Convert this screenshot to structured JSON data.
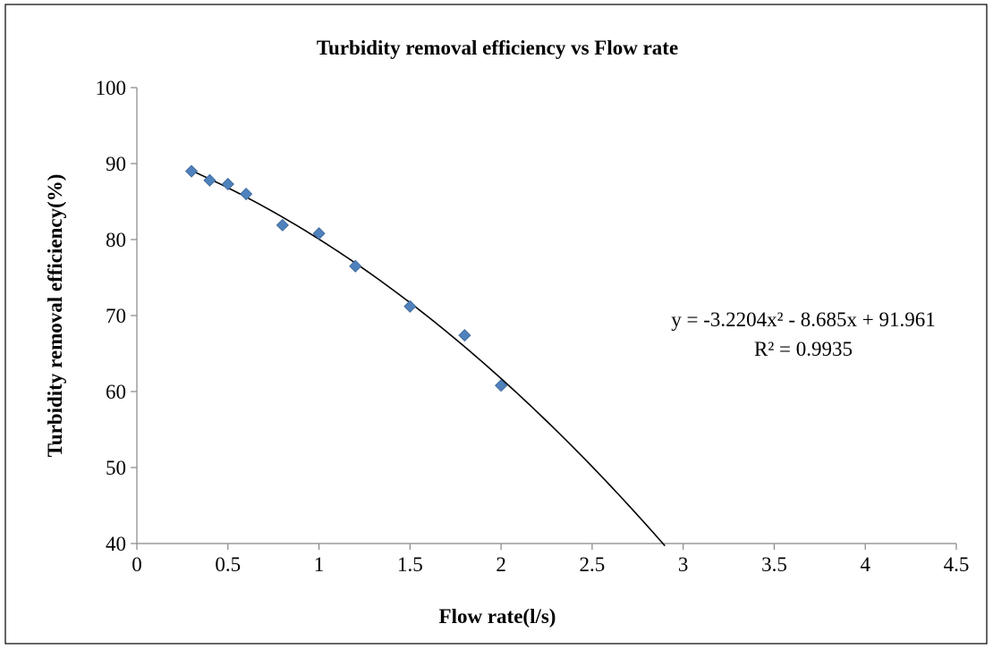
{
  "chart_data": {
    "type": "scatter",
    "title": "Turbidity removal efficiency vs Flow rate",
    "xlabel": "Flow rate(l/s)",
    "ylabel": "Turbidity removal efficiency(%)",
    "xlim": [
      0,
      4.5
    ],
    "ylim": [
      40,
      100
    ],
    "x_ticks": [
      "0",
      "0.5",
      "1",
      "1.5",
      "2",
      "2.5",
      "3",
      "3.5",
      "4",
      "4.5"
    ],
    "y_ticks": [
      "40",
      "50",
      "60",
      "70",
      "80",
      "90",
      "100"
    ],
    "grid": false,
    "legend": "none",
    "series": [
      {
        "x": [
          0.3,
          0.4,
          0.5,
          0.6,
          0.8,
          1.0,
          1.2,
          1.5,
          1.8,
          2.0
        ],
        "y": [
          89.0,
          87.8,
          87.3,
          86.0,
          81.9,
          80.8,
          76.5,
          71.2,
          67.4,
          60.8
        ],
        "marker": "diamond",
        "color": "#4F81BD"
      }
    ],
    "trendline": {
      "type": "polynomial",
      "coefficients": [
        -3.2204,
        -8.685,
        91.961
      ],
      "x_range": [
        0.3,
        2.9
      ],
      "color": "#000000",
      "equation_text": "y = -3.2204x² - 8.685x + 91.961",
      "r2_text": "R² = 0.9935"
    }
  }
}
